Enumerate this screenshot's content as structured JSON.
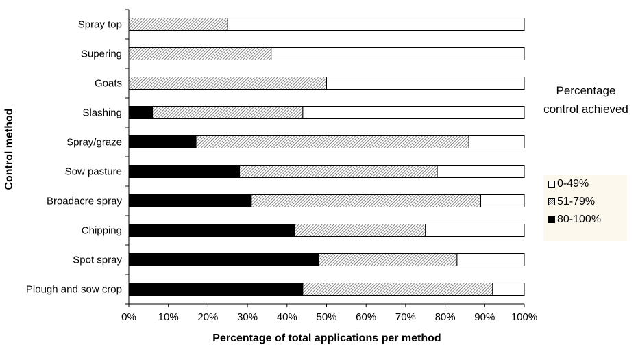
{
  "chart_data": {
    "type": "bar",
    "orientation": "horizontal",
    "stacked": true,
    "xlabel": "Percentage of total applications per method",
    "ylabel": "Control method",
    "xlim": [
      0,
      100
    ],
    "xticks": [
      "0%",
      "10%",
      "20%",
      "30%",
      "40%",
      "50%",
      "60%",
      "70%",
      "80%",
      "90%",
      "100%"
    ],
    "grid": false,
    "legend_title": [
      "Percentage",
      "control achieved"
    ],
    "legend_position": "right",
    "categories": [
      "Spray top",
      "Supering",
      "Goats",
      "Slashing",
      "Spray/graze",
      "Sow pasture",
      "Broadacre spray",
      "Chipping",
      "Spot spray",
      "Plough and sow crop"
    ],
    "series": [
      {
        "name": "80-100%",
        "fill": "#000000",
        "values": [
          0,
          0,
          0,
          6,
          17,
          28,
          31,
          42,
          48,
          44
        ]
      },
      {
        "name": "51-79%",
        "fill": "hatched",
        "values": [
          25,
          36,
          50,
          38,
          69,
          50,
          58,
          33,
          35,
          48
        ]
      },
      {
        "name": "0-49%",
        "fill": "#ffffff",
        "values": [
          75,
          64,
          50,
          56,
          14,
          22,
          11,
          25,
          17,
          8
        ]
      }
    ],
    "legend_order": [
      "0-49%",
      "51-79%",
      "80-100%"
    ]
  }
}
